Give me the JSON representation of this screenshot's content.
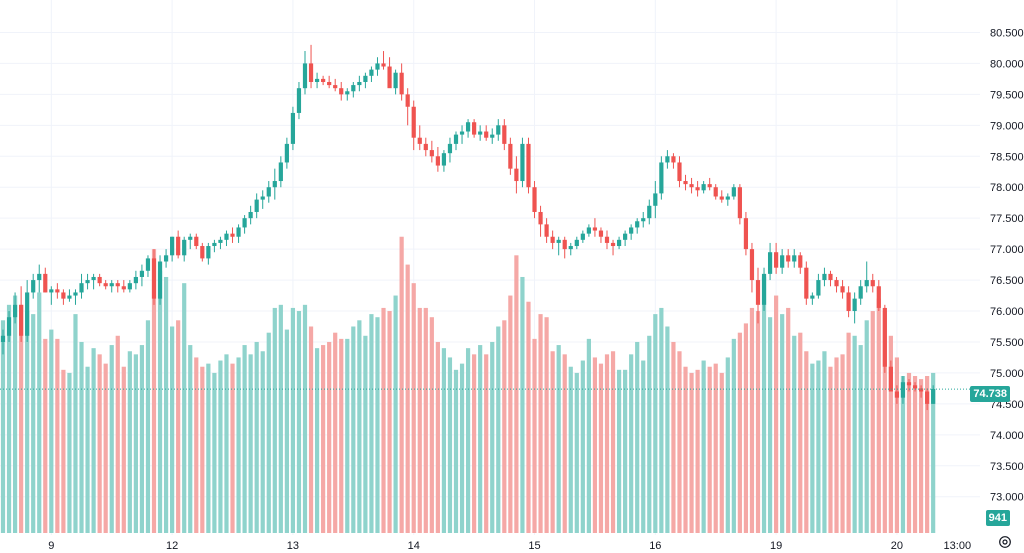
{
  "chart_data": {
    "type": "candlestick",
    "colors": {
      "up": "#26a69a",
      "down": "#ef5350",
      "up_volume": "#8fd3cc",
      "down_volume": "#f5a8a6",
      "grid": "#f0f3fa",
      "last_line": "#26a69a"
    },
    "y_axis": {
      "ticks": [
        73.0,
        73.5,
        74.0,
        74.5,
        75.0,
        75.5,
        76.0,
        76.5,
        77.0,
        77.5,
        78.0,
        78.5,
        79.0,
        79.5,
        80.0,
        80.5
      ],
      "labels": [
        "73.000",
        "73.500",
        "74.000",
        "74.500",
        "75.000",
        "75.500",
        "76.000",
        "76.500",
        "77.000",
        "77.500",
        "78.000",
        "78.500",
        "79.000",
        "79.500",
        "80.000",
        "80.500"
      ],
      "range": [
        72.85,
        80.75
      ]
    },
    "x_axis": {
      "labels": [
        "9",
        "12",
        "13",
        "14",
        "15",
        "16",
        "19",
        "20",
        "13:00"
      ],
      "label_bars": [
        8,
        28,
        48,
        68,
        88,
        108,
        128,
        148,
        158
      ]
    },
    "last_price": "74.738",
    "last_volume": "941",
    "bars": [
      [
        75.5,
        75.7,
        75.3,
        75.6,
        75.85
      ],
      [
        75.6,
        76.0,
        75.5,
        75.9,
        76.1
      ],
      [
        75.9,
        76.3,
        75.8,
        76.1,
        76.25
      ],
      [
        76.1,
        76.4,
        75.5,
        75.6,
        76.1
      ],
      [
        75.6,
        76.5,
        75.5,
        76.3,
        76.0
      ],
      [
        76.3,
        76.6,
        76.2,
        76.5,
        75.95
      ],
      [
        76.5,
        76.75,
        76.3,
        76.6,
        76.3
      ],
      [
        76.6,
        76.7,
        76.3,
        76.3,
        75.55
      ],
      [
        76.3,
        76.4,
        76.1,
        76.35,
        75.7
      ],
      [
        76.35,
        76.45,
        76.2,
        76.3,
        75.55
      ],
      [
        76.3,
        76.35,
        76.1,
        76.2,
        75.05
      ],
      [
        76.2,
        76.35,
        76.15,
        76.25,
        75.0
      ],
      [
        76.25,
        76.35,
        76.1,
        76.3,
        75.95
      ],
      [
        76.3,
        76.6,
        76.2,
        76.45,
        75.5
      ],
      [
        76.45,
        76.6,
        76.35,
        76.5,
        75.1
      ],
      [
        76.5,
        76.6,
        76.35,
        76.55,
        75.4
      ],
      [
        76.55,
        76.6,
        76.4,
        76.45,
        75.3
      ],
      [
        76.45,
        76.5,
        76.35,
        76.4,
        75.15
      ],
      [
        76.4,
        76.5,
        76.3,
        76.45,
        75.45
      ],
      [
        76.45,
        76.5,
        76.3,
        76.4,
        75.6
      ],
      [
        76.4,
        76.5,
        76.3,
        76.35,
        75.1
      ],
      [
        76.35,
        76.5,
        76.3,
        76.45,
        75.35
      ],
      [
        76.45,
        76.65,
        76.35,
        76.55,
        75.3
      ],
      [
        76.55,
        76.75,
        76.4,
        76.65,
        75.45
      ],
      [
        76.65,
        76.9,
        76.55,
        76.85,
        75.85
      ],
      [
        76.85,
        77.0,
        76.1,
        76.2,
        77.0
      ],
      [
        76.2,
        76.9,
        76.1,
        76.8,
        76.65
      ],
      [
        76.8,
        77.0,
        76.7,
        76.9,
        76.55
      ],
      [
        76.9,
        77.2,
        76.8,
        77.2,
        75.75
      ],
      [
        77.2,
        77.3,
        76.85,
        76.9,
        75.85
      ],
      [
        76.9,
        77.2,
        76.8,
        77.15,
        76.45
      ],
      [
        77.15,
        77.25,
        77.0,
        77.2,
        75.45
      ],
      [
        77.2,
        77.25,
        77.0,
        77.05,
        75.25
      ],
      [
        77.05,
        77.1,
        76.8,
        76.85,
        75.1
      ],
      [
        76.85,
        77.1,
        76.75,
        77.05,
        75.15
      ],
      [
        77.05,
        77.15,
        76.95,
        77.1,
        75.0
      ],
      [
        77.1,
        77.2,
        77.0,
        77.15,
        75.2
      ],
      [
        77.15,
        77.3,
        77.05,
        77.25,
        75.3
      ],
      [
        77.25,
        77.35,
        77.1,
        77.2,
        75.15
      ],
      [
        77.2,
        77.4,
        77.1,
        77.35,
        75.25
      ],
      [
        77.35,
        77.55,
        77.25,
        77.5,
        75.45
      ],
      [
        77.5,
        77.7,
        77.4,
        77.6,
        75.3
      ],
      [
        77.6,
        77.9,
        77.5,
        77.8,
        75.5
      ],
      [
        77.8,
        77.95,
        77.65,
        77.85,
        75.35
      ],
      [
        77.85,
        78.1,
        77.75,
        78.0,
        75.65
      ],
      [
        78.0,
        78.3,
        77.8,
        78.1,
        76.05
      ],
      [
        78.1,
        78.5,
        78.0,
        78.4,
        76.1
      ],
      [
        78.4,
        78.8,
        78.3,
        78.7,
        75.7
      ],
      [
        78.7,
        79.3,
        78.6,
        79.2,
        76.05
      ],
      [
        79.2,
        79.7,
        79.1,
        79.6,
        76.0
      ],
      [
        79.6,
        80.2,
        79.5,
        80.0,
        76.1
      ],
      [
        80.0,
        80.3,
        79.6,
        79.7,
        75.75
      ],
      [
        79.7,
        79.85,
        79.6,
        79.75,
        75.4
      ],
      [
        79.75,
        79.8,
        79.65,
        79.7,
        75.45
      ],
      [
        79.7,
        79.8,
        79.6,
        79.65,
        75.5
      ],
      [
        79.65,
        79.75,
        79.55,
        79.6,
        75.65
      ],
      [
        79.6,
        79.7,
        79.4,
        79.5,
        75.55
      ],
      [
        79.5,
        79.6,
        79.4,
        79.55,
        75.55
      ],
      [
        79.55,
        79.7,
        79.45,
        79.65,
        75.75
      ],
      [
        79.65,
        79.8,
        79.55,
        79.7,
        75.85
      ],
      [
        79.7,
        79.85,
        79.6,
        79.8,
        75.6
      ],
      [
        79.8,
        79.95,
        79.7,
        79.9,
        75.95
      ],
      [
        79.9,
        80.1,
        79.8,
        80.0,
        75.9
      ],
      [
        80.0,
        80.2,
        79.9,
        79.95,
        76.05
      ],
      [
        79.95,
        80.1,
        79.8,
        79.6,
        76.0
      ],
      [
        79.6,
        79.9,
        79.5,
        79.85,
        76.25
      ],
      [
        79.85,
        80.0,
        79.4,
        79.5,
        77.2
      ],
      [
        79.5,
        79.6,
        79.0,
        79.3,
        76.75
      ],
      [
        79.3,
        79.4,
        78.6,
        78.8,
        76.45
      ],
      [
        78.8,
        79.0,
        78.6,
        78.7,
        76.05
      ],
      [
        78.7,
        78.8,
        78.5,
        78.6,
        76.05
      ],
      [
        78.6,
        78.75,
        78.4,
        78.5,
        75.9
      ],
      [
        78.5,
        78.65,
        78.25,
        78.35,
        75.5
      ],
      [
        78.35,
        78.6,
        78.25,
        78.55,
        75.4
      ],
      [
        78.55,
        78.8,
        78.4,
        78.7,
        75.25
      ],
      [
        78.7,
        78.9,
        78.6,
        78.85,
        75.05
      ],
      [
        78.85,
        79.0,
        78.7,
        78.9,
        75.15
      ],
      [
        78.9,
        79.1,
        78.8,
        79.05,
        75.4
      ],
      [
        79.05,
        79.1,
        78.8,
        78.85,
        75.3
      ],
      [
        78.85,
        79.0,
        78.75,
        78.9,
        75.45
      ],
      [
        78.9,
        79.0,
        78.75,
        78.8,
        75.3
      ],
      [
        78.8,
        78.95,
        78.7,
        78.85,
        75.5
      ],
      [
        78.85,
        79.1,
        78.75,
        79.0,
        75.75
      ],
      [
        79.0,
        79.1,
        78.6,
        78.7,
        75.85
      ],
      [
        78.7,
        78.8,
        78.2,
        78.3,
        76.25
      ],
      [
        78.3,
        78.5,
        77.9,
        78.1,
        76.9
      ],
      [
        78.1,
        78.8,
        78.0,
        78.7,
        76.55
      ],
      [
        78.7,
        78.8,
        77.9,
        78.0,
        76.15
      ],
      [
        78.0,
        78.1,
        77.5,
        77.6,
        75.55
      ],
      [
        77.6,
        77.7,
        77.2,
        77.4,
        75.95
      ],
      [
        77.4,
        77.5,
        77.1,
        77.2,
        75.9
      ],
      [
        77.2,
        77.3,
        77.0,
        77.1,
        75.35
      ],
      [
        77.1,
        77.2,
        76.9,
        77.15,
        75.45
      ],
      [
        77.15,
        77.2,
        76.85,
        77.0,
        75.3
      ],
      [
        77.0,
        77.1,
        76.9,
        77.05,
        75.1
      ],
      [
        77.05,
        77.2,
        77.0,
        77.15,
        75.0
      ],
      [
        77.15,
        77.3,
        77.1,
        77.25,
        75.2
      ],
      [
        77.25,
        77.4,
        77.2,
        77.35,
        75.55
      ],
      [
        77.35,
        77.5,
        77.2,
        77.3,
        75.25
      ],
      [
        77.3,
        77.35,
        77.1,
        77.2,
        75.15
      ],
      [
        77.2,
        77.3,
        77.0,
        77.1,
        75.3
      ],
      [
        77.1,
        77.15,
        76.9,
        77.05,
        75.35
      ],
      [
        77.05,
        77.2,
        77.0,
        77.15,
        75.05
      ],
      [
        77.15,
        77.3,
        77.05,
        77.25,
        75.05
      ],
      [
        77.25,
        77.4,
        77.15,
        77.35,
        75.3
      ],
      [
        77.35,
        77.5,
        77.25,
        77.45,
        75.5
      ],
      [
        77.45,
        77.6,
        77.35,
        77.5,
        75.2
      ],
      [
        77.5,
        77.8,
        77.4,
        77.7,
        75.6
      ],
      [
        77.7,
        78.1,
        77.5,
        77.9,
        75.95
      ],
      [
        77.9,
        78.5,
        77.8,
        78.4,
        76.05
      ],
      [
        78.4,
        78.6,
        78.3,
        78.5,
        75.75
      ],
      [
        78.5,
        78.55,
        78.3,
        78.4,
        75.5
      ],
      [
        78.4,
        78.5,
        78.0,
        78.1,
        75.35
      ],
      [
        78.1,
        78.2,
        77.95,
        78.05,
        75.1
      ],
      [
        78.05,
        78.15,
        77.9,
        78.0,
        75.0
      ],
      [
        78.0,
        78.1,
        77.85,
        77.95,
        75.05
      ],
      [
        77.95,
        78.1,
        77.9,
        78.05,
        75.2
      ],
      [
        78.05,
        78.15,
        77.95,
        78.0,
        75.1
      ],
      [
        78.0,
        78.05,
        77.8,
        77.85,
        75.15
      ],
      [
        77.85,
        77.95,
        77.75,
        77.8,
        75.0
      ],
      [
        77.8,
        77.9,
        77.7,
        77.85,
        75.25
      ],
      [
        77.85,
        78.05,
        77.8,
        78.0,
        75.55
      ],
      [
        78.0,
        78.05,
        77.4,
        77.5,
        75.65
      ],
      [
        77.5,
        77.6,
        76.9,
        77.0,
        75.8
      ],
      [
        77.0,
        77.1,
        76.3,
        76.5,
        76.05
      ],
      [
        76.5,
        76.7,
        75.8,
        76.1,
        76.0
      ],
      [
        76.1,
        76.7,
        76.0,
        76.6,
        76.55
      ],
      [
        76.6,
        77.1,
        76.5,
        76.95,
        75.9
      ],
      [
        76.95,
        77.1,
        76.6,
        76.7,
        76.25
      ],
      [
        76.7,
        77.0,
        76.6,
        76.9,
        75.95
      ],
      [
        76.9,
        77.0,
        76.7,
        76.8,
        76.05
      ],
      [
        76.8,
        77.0,
        76.7,
        76.9,
        75.6
      ],
      [
        76.9,
        76.95,
        76.6,
        76.7,
        75.65
      ],
      [
        76.7,
        76.8,
        76.1,
        76.2,
        75.35
      ],
      [
        76.2,
        76.3,
        76.1,
        76.25,
        75.15
      ],
      [
        76.25,
        76.6,
        76.2,
        76.5,
        75.2
      ],
      [
        76.5,
        76.7,
        76.4,
        76.6,
        75.35
      ],
      [
        76.6,
        76.65,
        76.4,
        76.5,
        75.1
      ],
      [
        76.5,
        76.55,
        76.3,
        76.4,
        75.25
      ],
      [
        76.4,
        76.5,
        76.2,
        76.3,
        75.3
      ],
      [
        76.3,
        76.4,
        75.9,
        76.0,
        75.65
      ],
      [
        76.0,
        76.3,
        75.8,
        76.2,
        75.6
      ],
      [
        76.2,
        76.5,
        76.1,
        76.4,
        75.45
      ],
      [
        76.4,
        76.8,
        76.3,
        76.5,
        75.85
      ],
      [
        76.5,
        76.6,
        76.3,
        76.4,
        76.0
      ],
      [
        76.4,
        76.5,
        76.0,
        76.05,
        76.2
      ],
      [
        76.05,
        76.1,
        75.0,
        75.1,
        76.0
      ],
      [
        75.1,
        75.2,
        74.8,
        74.7,
        75.6
      ],
      [
        74.7,
        74.8,
        74.5,
        74.6,
        75.25
      ],
      [
        74.6,
        74.95,
        74.5,
        74.85,
        74.95
      ],
      [
        74.85,
        74.9,
        74.7,
        74.8,
        75.0
      ],
      [
        74.8,
        74.85,
        74.7,
        74.75,
        74.95
      ],
      [
        74.75,
        74.8,
        74.6,
        74.7,
        74.9
      ],
      [
        74.7,
        74.75,
        74.4,
        74.5,
        74.95
      ],
      [
        74.5,
        74.8,
        74.5,
        74.74,
        75.0
      ]
    ]
  }
}
